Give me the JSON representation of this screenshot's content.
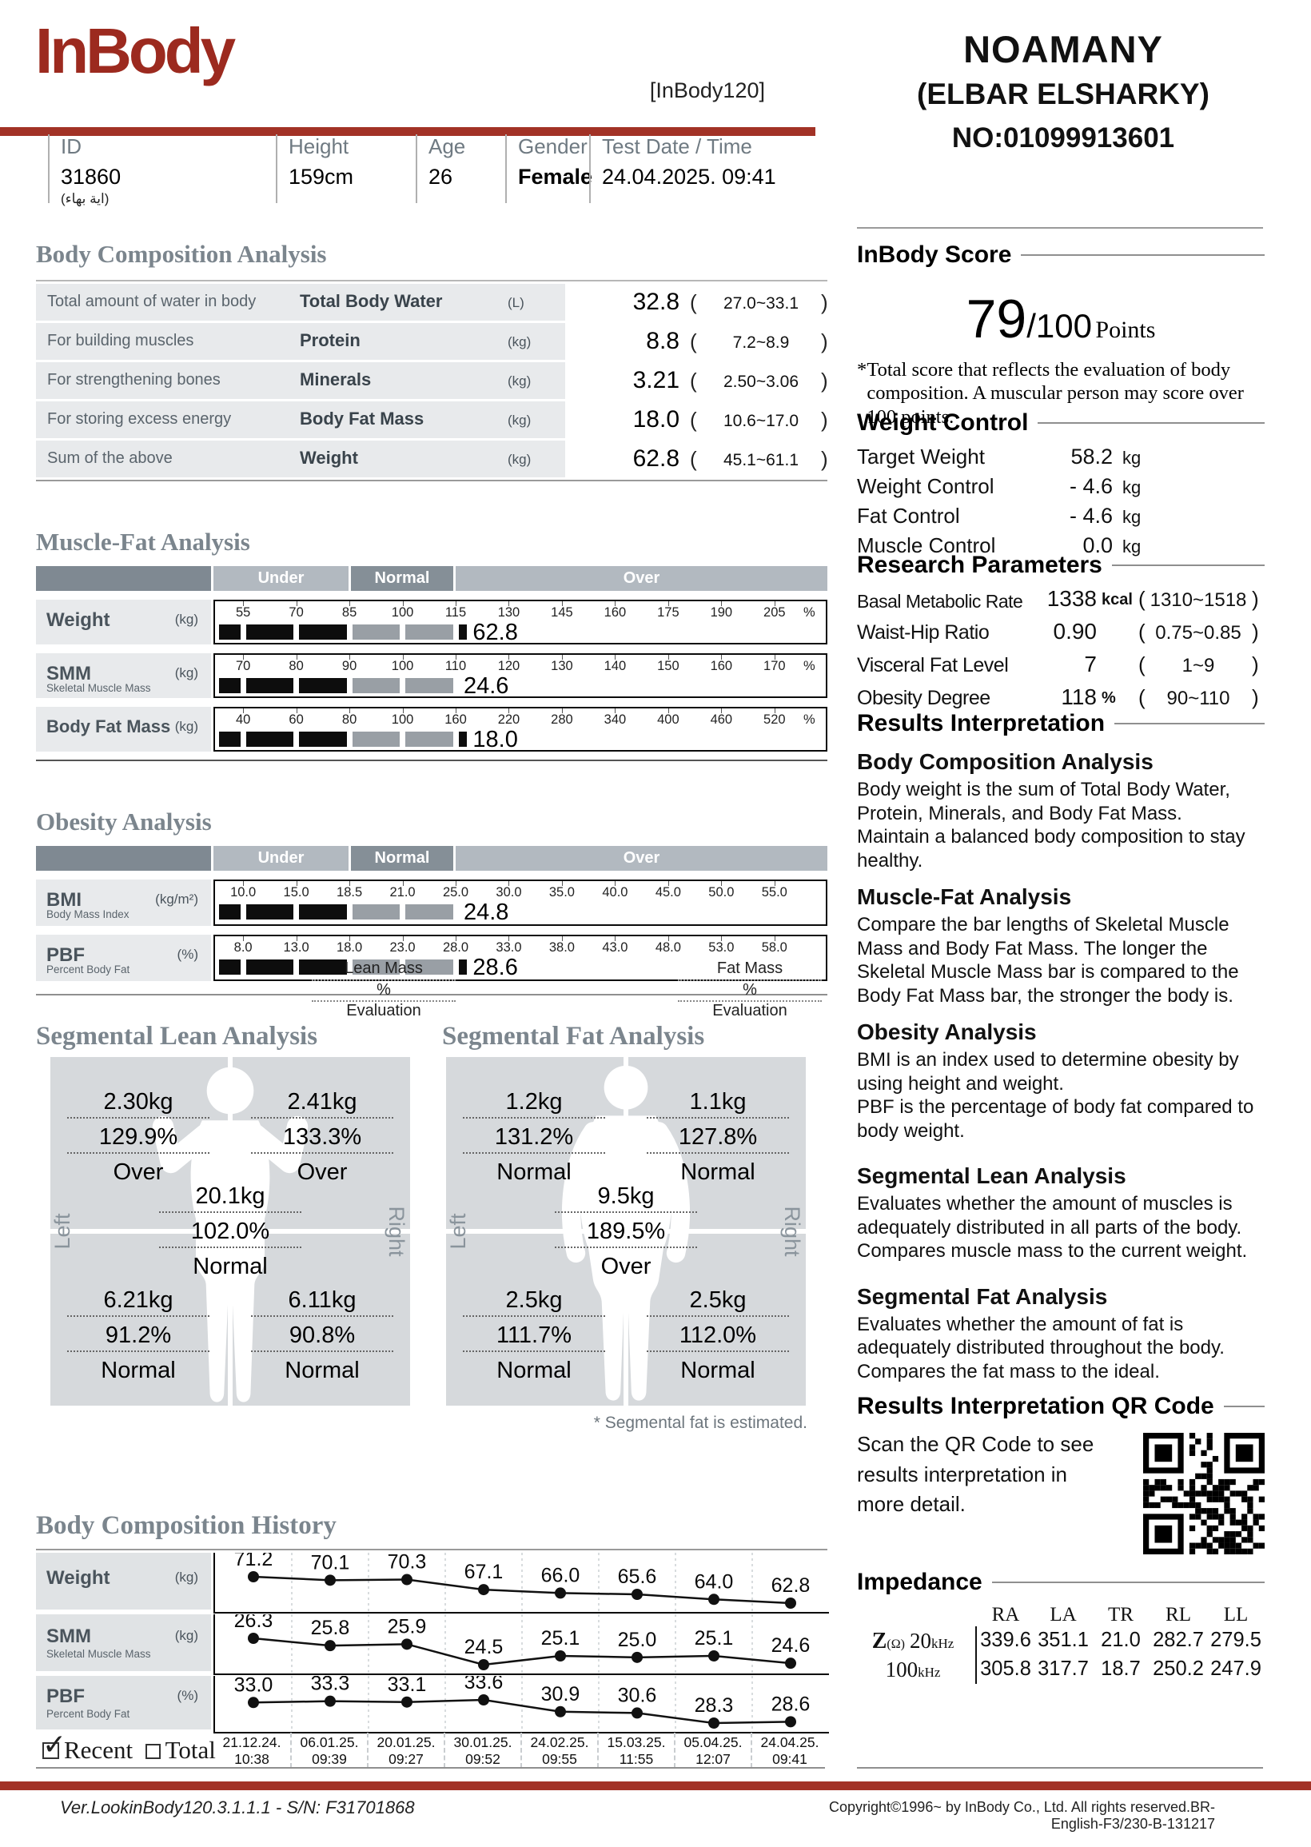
{
  "misc": {
    "open": "(",
    "close": ")",
    "star": "*",
    "check": "✓"
  },
  "header": {
    "logo": "InBody",
    "model": "[InBody120]",
    "patient_name": "NOAMANY",
    "patient_name2": "(ELBAR ELSHARKY)",
    "patient_no": "NO:01099913601",
    "info": {
      "id_label": "ID",
      "id_value": "31860",
      "id_sub": "(اية بهاء)",
      "height_label": "Height",
      "height_value": "159cm",
      "age_label": "Age",
      "age_value": "26",
      "gender_label": "Gender",
      "gender_value": "Female",
      "test_label": "Test Date / Time",
      "test_value": "24.04.2025. 09:41"
    }
  },
  "body_composition": {
    "title": "Body Composition Analysis",
    "rows": [
      {
        "desc": "Total amount of water in body",
        "name": "Total Body Water",
        "unit": "(L)",
        "value": "32.8",
        "range": "27.0~33.1"
      },
      {
        "desc": "For building muscles",
        "name": "Protein",
        "unit": "(kg)",
        "value": "8.8",
        "range": "7.2~8.9"
      },
      {
        "desc": "For strengthening bones",
        "name": "Minerals",
        "unit": "(kg)",
        "value": "3.21",
        "range": "2.50~3.06"
      },
      {
        "desc": "For storing excess energy",
        "name": "Body Fat Mass",
        "unit": "(kg)",
        "value": "18.0",
        "range": "10.6~17.0"
      },
      {
        "desc": "Sum of the above",
        "name": "Weight",
        "unit": "(kg)",
        "value": "62.8",
        "range": "45.1~61.1"
      }
    ]
  },
  "muscle_fat": {
    "title": "Muscle-Fat Analysis",
    "zones": [
      "Under",
      "Normal",
      "Over"
    ],
    "rows": [
      {
        "label": "Weight",
        "sub": "",
        "unit": "(kg)",
        "pct": "%",
        "value": "62.8",
        "stub": true,
        "ticks": [
          "55",
          "70",
          "85",
          "100",
          "115",
          "130",
          "145",
          "160",
          "175",
          "190",
          "205"
        ]
      },
      {
        "label": "SMM",
        "sub": "Skeletal Muscle Mass",
        "unit": "(kg)",
        "pct": "%",
        "value": "24.6",
        "stub": false,
        "ticks": [
          "70",
          "80",
          "90",
          "100",
          "110",
          "120",
          "130",
          "140",
          "150",
          "160",
          "170"
        ]
      },
      {
        "label": "Body Fat Mass",
        "sub": "",
        "unit": "(kg)",
        "pct": "%",
        "value": "18.0",
        "stub": true,
        "ticks": [
          "40",
          "60",
          "80",
          "100",
          "160",
          "220",
          "280",
          "340",
          "400",
          "460",
          "520"
        ]
      }
    ]
  },
  "obesity": {
    "title": "Obesity Analysis",
    "zones": [
      "Under",
      "Normal",
      "Over"
    ],
    "rows": [
      {
        "label": "BMI",
        "sub": "Body Mass Index",
        "unit": "(kg/m²)",
        "pct": "",
        "value": "24.8",
        "stub": false,
        "ticks": [
          "10.0",
          "15.0",
          "18.5",
          "21.0",
          "25.0",
          "30.0",
          "35.0",
          "40.0",
          "45.0",
          "50.0",
          "55.0"
        ]
      },
      {
        "label": "PBF",
        "sub": "Percent Body Fat",
        "unit": "(%)",
        "pct": "",
        "value": "28.6",
        "stub": true,
        "ticks": [
          "8.0",
          "13.0",
          "18.0",
          "23.0",
          "28.0",
          "33.0",
          "38.0",
          "43.0",
          "48.0",
          "53.0",
          "58.0"
        ]
      }
    ]
  },
  "segmental_lean": {
    "title": "Segmental Lean Analysis",
    "col_header": {
      "l1": "Lean Mass",
      "l2": "%",
      "l3": "Evaluation"
    },
    "left_label": "Left",
    "right_label": "Right",
    "parts": {
      "left_arm": {
        "kg": "2.30kg",
        "pct": "129.9%",
        "eval": "Over"
      },
      "right_arm": {
        "kg": "2.41kg",
        "pct": "133.3%",
        "eval": "Over"
      },
      "trunk": {
        "kg": "20.1kg",
        "pct": "102.0%",
        "eval": "Normal"
      },
      "left_leg": {
        "kg": "6.21kg",
        "pct": "91.2%",
        "eval": "Normal"
      },
      "right_leg": {
        "kg": "6.11kg",
        "pct": "90.8%",
        "eval": "Normal"
      }
    }
  },
  "segmental_fat": {
    "title": "Segmental Fat Analysis",
    "col_header": {
      "l1": "Fat Mass",
      "l2": "%",
      "l3": "Evaluation"
    },
    "left_label": "Left",
    "right_label": "Right",
    "note": "* Segmental fat is estimated.",
    "parts": {
      "left_arm": {
        "kg": "1.2kg",
        "pct": "131.2%",
        "eval": "Normal"
      },
      "right_arm": {
        "kg": "1.1kg",
        "pct": "127.8%",
        "eval": "Normal"
      },
      "trunk": {
        "kg": "9.5kg",
        "pct": "189.5%",
        "eval": "Over"
      },
      "left_leg": {
        "kg": "2.5kg",
        "pct": "111.7%",
        "eval": "Normal"
      },
      "right_leg": {
        "kg": "2.5kg",
        "pct": "112.0%",
        "eval": "Normal"
      }
    }
  },
  "history": {
    "title": "Body Composition History",
    "legend_recent": "Recent",
    "legend_total": "Total",
    "rows": [
      {
        "label": "Weight",
        "sub": "",
        "unit": "(kg)"
      },
      {
        "label": "SMM",
        "sub": "Skeletal Muscle Mass",
        "unit": "(kg)"
      },
      {
        "label": "PBF",
        "sub": "Percent Body Fat",
        "unit": "(%)"
      }
    ]
  },
  "chart_data": {
    "type": "line",
    "title": "Body Composition History",
    "x": [
      "21.12.24. 10:38",
      "06.01.25. 09:39",
      "20.01.25. 09:27",
      "30.01.25. 09:52",
      "24.02.25. 09:55",
      "15.03.25. 11:55",
      "05.04.25. 12:07",
      "24.04.25. 09:41"
    ],
    "series": [
      {
        "name": "Weight (kg)",
        "values": [
          71.2,
          70.1,
          70.3,
          67.1,
          66.0,
          65.6,
          64.0,
          62.8
        ]
      },
      {
        "name": "SMM (kg)",
        "values": [
          26.3,
          25.8,
          25.9,
          24.5,
          25.1,
          25.0,
          25.1,
          24.6
        ]
      },
      {
        "name": "PBF (%)",
        "values": [
          33.0,
          33.3,
          33.1,
          33.6,
          30.9,
          30.6,
          28.3,
          28.6
        ]
      }
    ],
    "legend_position": "bottom-left",
    "grid": "dashed-vertical"
  },
  "score": {
    "title": "InBody Score",
    "value": "79",
    "total": "/100",
    "points": "Points",
    "note": "Total score that reflects the evaluation of body composition. A muscular person may score over 100 points."
  },
  "weight_control": {
    "title": "Weight Control",
    "rows": [
      {
        "label": "Target Weight",
        "value": "58.2",
        "unit": "kg"
      },
      {
        "label": "Weight Control",
        "value": "- 4.6",
        "unit": "kg"
      },
      {
        "label": "Fat Control",
        "value": "- 4.6",
        "unit": "kg"
      },
      {
        "label": "Muscle Control",
        "value": "0.0",
        "unit": "kg"
      }
    ]
  },
  "research": {
    "title": "Research Parameters",
    "rows": [
      {
        "label": "Basal Metabolic Rate",
        "value": "1338",
        "unit": "kcal",
        "range": "1310~1518"
      },
      {
        "label": "Waist-Hip Ratio",
        "value": "0.90",
        "unit": "",
        "range": "0.75~0.85"
      },
      {
        "label": "Visceral Fat Level",
        "value": "7",
        "unit": "",
        "range": "1~9"
      },
      {
        "label": "Obesity Degree",
        "value": "118",
        "unit": "%",
        "range": "90~110"
      }
    ]
  },
  "interpretation": {
    "title": "Results Interpretation",
    "sections": [
      {
        "h": "Body Composition Analysis",
        "p": "Body weight is the sum of Total Body Water, Protein, Minerals, and Body Fat Mass.\nMaintain a balanced body composition to stay healthy."
      },
      {
        "h": "Muscle-Fat Analysis",
        "p": "Compare the bar lengths of Skeletal Muscle Mass and Body Fat Mass. The longer the Skeletal Muscle Mass bar is compared to the Body Fat Mass bar, the stronger the body is."
      },
      {
        "h": "Obesity Analysis",
        "p": "BMI is an index used to determine obesity by using height and weight.\nPBF is the percentage of body fat compared to body weight."
      },
      {
        "h": "Segmental Lean Analysis",
        "p": "Evaluates whether the amount of muscles is adequately distributed in all parts of the body. Compares muscle mass to the current weight."
      },
      {
        "h": "Segmental Fat Analysis",
        "p": "Evaluates whether the amount of fat is adequately distributed throughout the body. Compares the fat mass to the ideal."
      }
    ]
  },
  "qr": {
    "title": "Results Interpretation QR Code",
    "text": "Scan the QR Code to see\nresults interpretation in\nmore detail."
  },
  "impedance": {
    "title": "Impedance",
    "z_label": "Z",
    "z_unit": "(Ω)",
    "khz": "kHz",
    "freq1": "20",
    "freq2": "100",
    "cols": [
      "RA",
      "LA",
      "TR",
      "RL",
      "LL"
    ],
    "r20": [
      "339.6",
      "351.1",
      "21.0",
      "282.7",
      "279.5"
    ],
    "r100": [
      "305.8",
      "317.7",
      "18.7",
      "250.2",
      "247.9"
    ]
  },
  "footer": {
    "version": "Ver.LookinBody120.3.1.1.1 - S/N: F31701868",
    "copyright": "Copyright©1996~ by InBody Co., Ltd. All rights reserved.BR-English-F3/230-B-131217"
  }
}
